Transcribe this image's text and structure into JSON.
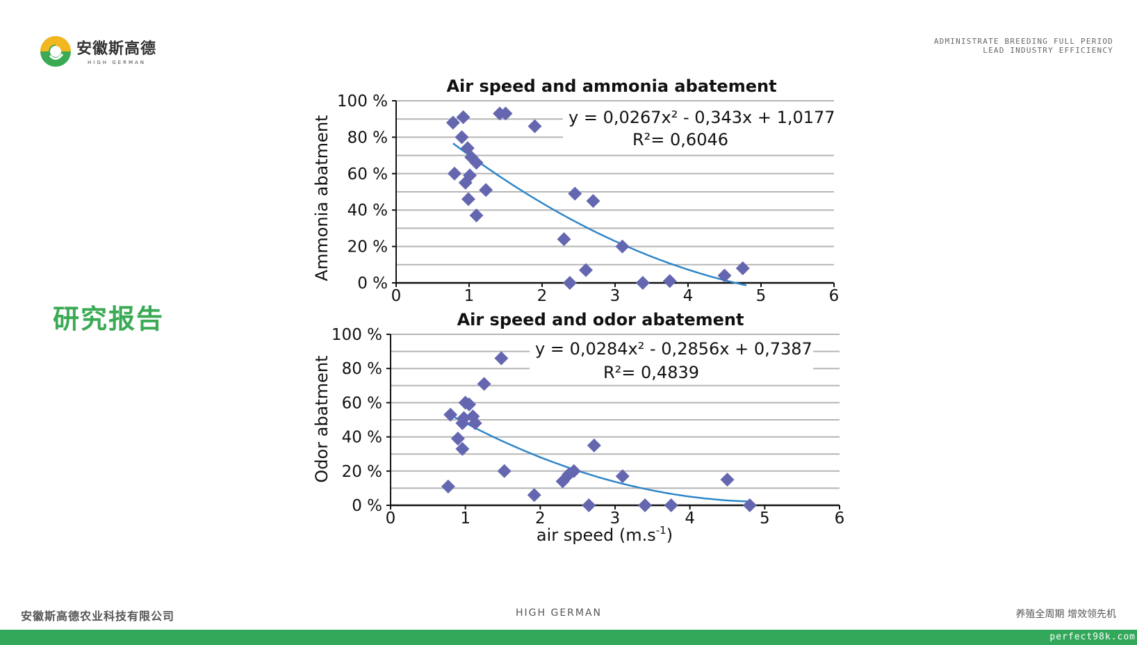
{
  "header": {
    "logo_cn": "安徽斯高德",
    "logo_en": "HIGH GERMAN",
    "slogan_line1": "ADMINISTRATE BREEDING FULL PERIOD",
    "slogan_line2": "LEAD INDUSTRY EFFICIENCY"
  },
  "side_title": "研究报告",
  "footer": {
    "company": "安徽斯高德农业科技有限公司",
    "brand": "HIGH GERMAN",
    "slogan": "养殖全周期 增效领先机",
    "watermark": "perfect98k.com"
  },
  "colors": {
    "accent_green": "#33a85a",
    "marker": "#6466b0",
    "trend": "#2e86c8",
    "grid": "#b5b5b5"
  },
  "chart_data": [
    {
      "type": "scatter",
      "title": "Air speed and ammonia abatement",
      "ylabel": "Ammonia abatment",
      "xlabel": "",
      "xlim": [
        0,
        6
      ],
      "ylim": [
        0,
        100
      ],
      "x_ticks": [
        "0",
        "1",
        "2",
        "3",
        "4",
        "5",
        "6"
      ],
      "y_ticks": [
        "0 %",
        "20 %",
        "40 %",
        "60 %",
        "80 %",
        "100 %"
      ],
      "grid": "horizontal",
      "equation": "y = 0,0267x² - 0,343x + 1,0177",
      "r_squared": "R²= 0,6046",
      "trendline": {
        "a": 0.0267,
        "b": -0.343,
        "c": 1.0177,
        "x_from": 0.78,
        "x_to": 4.8
      },
      "points": [
        {
          "x": 0.78,
          "y": 88
        },
        {
          "x": 0.92,
          "y": 91
        },
        {
          "x": 1.42,
          "y": 93
        },
        {
          "x": 1.5,
          "y": 93
        },
        {
          "x": 1.9,
          "y": 86
        },
        {
          "x": 0.9,
          "y": 80
        },
        {
          "x": 0.98,
          "y": 74
        },
        {
          "x": 1.03,
          "y": 69
        },
        {
          "x": 1.1,
          "y": 66
        },
        {
          "x": 0.8,
          "y": 60
        },
        {
          "x": 1.01,
          "y": 59
        },
        {
          "x": 0.95,
          "y": 55
        },
        {
          "x": 1.23,
          "y": 51
        },
        {
          "x": 0.99,
          "y": 46
        },
        {
          "x": 1.1,
          "y": 37
        },
        {
          "x": 2.45,
          "y": 49
        },
        {
          "x": 2.7,
          "y": 45
        },
        {
          "x": 2.3,
          "y": 24
        },
        {
          "x": 3.1,
          "y": 20
        },
        {
          "x": 2.6,
          "y": 7
        },
        {
          "x": 2.38,
          "y": 0
        },
        {
          "x": 3.38,
          "y": 0
        },
        {
          "x": 3.75,
          "y": 1
        },
        {
          "x": 4.5,
          "y": 4
        },
        {
          "x": 4.75,
          "y": 8
        }
      ]
    },
    {
      "type": "scatter",
      "title": "Air speed and odor abatement",
      "ylabel": "Odor abatment",
      "xlabel": "air speed (m.s-1)",
      "xlabel_main": "air speed (m.s",
      "xlabel_sup": "-1",
      "xlabel_tail": ")",
      "xlim": [
        0,
        6
      ],
      "ylim": [
        0,
        100
      ],
      "x_ticks": [
        "0",
        "1",
        "2",
        "3",
        "4",
        "5",
        "6"
      ],
      "y_ticks": [
        "0 %",
        "20 %",
        "40 %",
        "60 %",
        "80 %",
        "100 %"
      ],
      "grid": "horizontal",
      "equation": "y = 0,0284x² - 0,2856x + 0,7387",
      "r_squared": "R²= 0,4839",
      "trendline": {
        "a": 0.0284,
        "b": -0.2856,
        "c": 0.7387,
        "x_from": 0.78,
        "x_to": 4.8
      },
      "points": [
        {
          "x": 1.48,
          "y": 86
        },
        {
          "x": 1.25,
          "y": 71
        },
        {
          "x": 1.0,
          "y": 60
        },
        {
          "x": 1.05,
          "y": 59
        },
        {
          "x": 0.8,
          "y": 53
        },
        {
          "x": 1.1,
          "y": 52
        },
        {
          "x": 0.98,
          "y": 51
        },
        {
          "x": 1.13,
          "y": 48
        },
        {
          "x": 0.96,
          "y": 48
        },
        {
          "x": 0.9,
          "y": 39
        },
        {
          "x": 0.96,
          "y": 33
        },
        {
          "x": 0.77,
          "y": 11
        },
        {
          "x": 1.52,
          "y": 20
        },
        {
          "x": 1.92,
          "y": 6
        },
        {
          "x": 2.3,
          "y": 14
        },
        {
          "x": 2.38,
          "y": 18
        },
        {
          "x": 2.45,
          "y": 20
        },
        {
          "x": 2.72,
          "y": 35
        },
        {
          "x": 3.1,
          "y": 17
        },
        {
          "x": 2.65,
          "y": 0
        },
        {
          "x": 3.4,
          "y": 0
        },
        {
          "x": 3.75,
          "y": 0
        },
        {
          "x": 4.5,
          "y": 15
        },
        {
          "x": 4.8,
          "y": 0
        }
      ]
    }
  ]
}
